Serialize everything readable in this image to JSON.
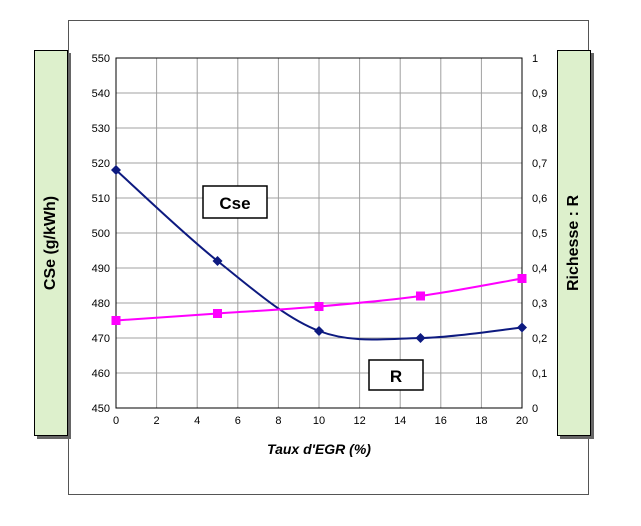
{
  "chart_data": {
    "type": "line",
    "xlabel": "Taux d'EGR (%)",
    "ylabel_left": "CSe (g/kWh)",
    "ylabel_right": "Richesse : R",
    "x_ticks": [
      "0",
      "2",
      "4",
      "6",
      "8",
      "10",
      "12",
      "14",
      "16",
      "18",
      "20"
    ],
    "y_left_ticks": [
      "450",
      "460",
      "470",
      "480",
      "490",
      "500",
      "510",
      "520",
      "530",
      "540",
      "550"
    ],
    "y_right_ticks": [
      "0",
      "0,1",
      "0,2",
      "0,3",
      "0,4",
      "0,5",
      "0,6",
      "0,7",
      "0,8",
      "0,9",
      "1"
    ],
    "xlim": [
      0,
      20
    ],
    "ylim_left": [
      450,
      550
    ],
    "ylim_right": [
      0,
      1
    ],
    "grid": true,
    "series": [
      {
        "name": "Cse",
        "axis": "left",
        "color": "#0d1a80",
        "marker": "diamond",
        "x": [
          0,
          5,
          10,
          15,
          20
        ],
        "y": [
          518,
          492,
          472,
          470,
          473
        ]
      },
      {
        "name": "R",
        "axis": "right",
        "color": "#ff00ff",
        "marker": "square",
        "x": [
          0,
          5,
          10,
          15,
          20
        ],
        "y": [
          0.25,
          0.27,
          0.29,
          0.32,
          0.37
        ]
      }
    ],
    "callouts": {
      "cse": "Cse",
      "r": "R"
    }
  }
}
